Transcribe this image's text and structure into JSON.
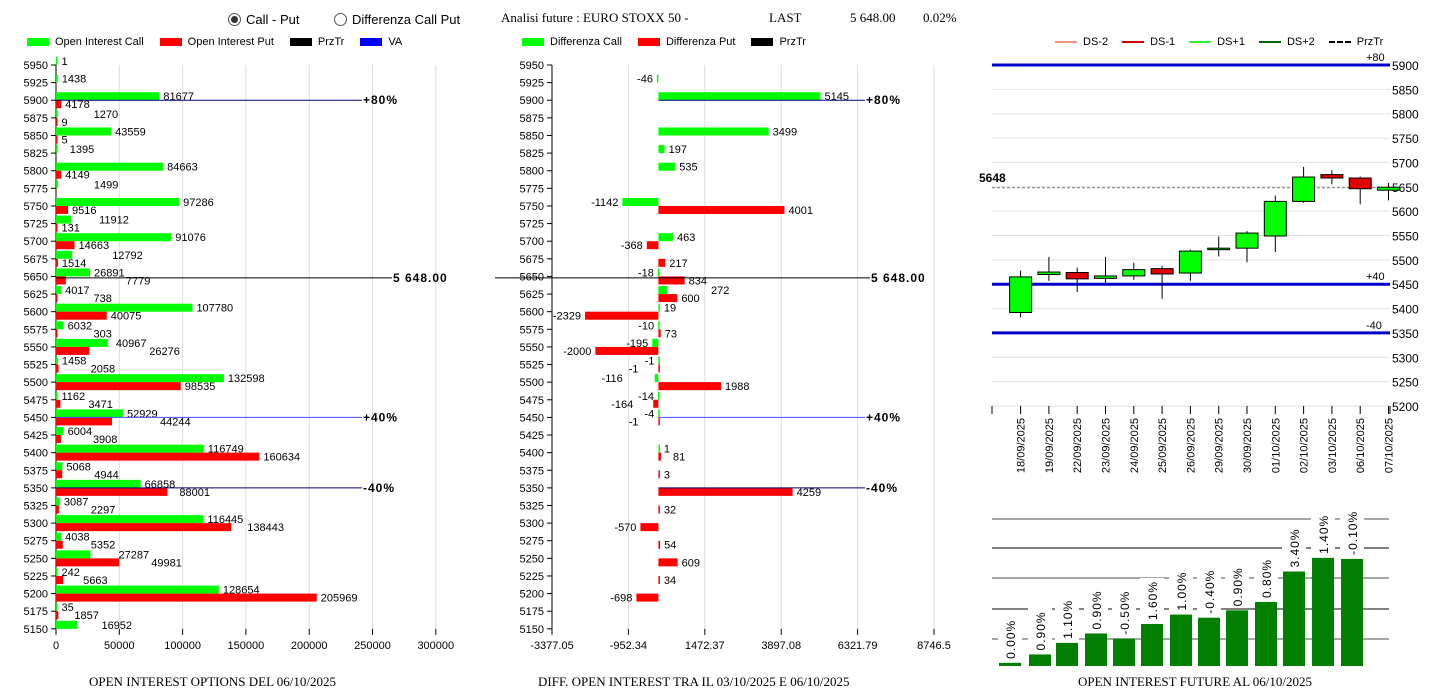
{
  "controls": {
    "radio_call_put": "Call - Put",
    "radio_diff": "Differenza Call Put",
    "selected": "Call - Put"
  },
  "header": {
    "title": "Analisi future : EURO STOXX 50 -",
    "last_label": "LAST",
    "last_value": "5 648.00",
    "change_pct": "0.02%"
  },
  "colors": {
    "call": "#00ff00",
    "put": "#ff0000",
    "przTr": "#000000",
    "va": "#0000ff",
    "candle_up": "#00ff00",
    "candle_down": "#e00000",
    "oi_bar": "#007f00"
  },
  "chart_data": [
    {
      "type": "bar",
      "name": "open-interest-options",
      "title": "OPEN INTEREST OPTIONS DEL 06/10/2025",
      "legend": [
        "Open Interest Call",
        "Open Interest Put",
        "PrzTr",
        "VA"
      ],
      "legend_placement": "top",
      "orientation": "horizontal",
      "categories": [
        5950,
        5925,
        5900,
        5875,
        5850,
        5825,
        5800,
        5775,
        5750,
        5725,
        5700,
        5675,
        5650,
        5625,
        5600,
        5575,
        5550,
        5525,
        5500,
        5475,
        5450,
        5425,
        5400,
        5375,
        5350,
        5325,
        5300,
        5275,
        5250,
        5225,
        5200,
        5175,
        5150
      ],
      "series": [
        {
          "name": "Open Interest Call",
          "values": [
            1,
            1438,
            81677,
            1270,
            43559,
            1395,
            84663,
            1499,
            97286,
            11912,
            91076,
            12792,
            26891,
            4017,
            107780,
            6032,
            40967,
            1458,
            132598,
            1162,
            52929,
            6004,
            116749,
            5068,
            66858,
            3087,
            116445,
            4038,
            27287,
            242,
            128654,
            35,
            16952
          ]
        },
        {
          "name": "Open Interest Put",
          "values": [
            null,
            null,
            4178,
            9,
            5,
            null,
            4149,
            null,
            9516,
            131,
            14663,
            1514,
            7779,
            738,
            40075,
            303,
            26276,
            2058,
            98535,
            3471,
            44244,
            3908,
            160634,
            4944,
            88001,
            2297,
            138443,
            5352,
            49981,
            5663,
            205969,
            1857,
            null
          ]
        }
      ],
      "xticks": [
        "0",
        "50000",
        "100000",
        "150000",
        "200000",
        "250000",
        "300000"
      ],
      "xlim": [
        0,
        330000
      ],
      "reference_lines": [
        {
          "strike": 5900,
          "label": "+80%",
          "kind": "VA"
        },
        {
          "strike": 5648,
          "label": "5 648.00",
          "kind": "PrzTr"
        },
        {
          "strike": 5450,
          "label": "+40%",
          "kind": "VA"
        },
        {
          "strike": 5350,
          "label": "-40%",
          "kind": "VA"
        }
      ],
      "grid": true
    },
    {
      "type": "bar",
      "name": "diff-open-interest",
      "title": "DIFF. OPEN INTEREST TRA IL 03/10/2025 E 06/10/2025",
      "legend": [
        "Differenza Call",
        "Differenza Put",
        "PrzTr"
      ],
      "legend_placement": "top",
      "orientation": "horizontal",
      "categories": [
        5950,
        5925,
        5900,
        5875,
        5850,
        5825,
        5800,
        5775,
        5750,
        5725,
        5700,
        5675,
        5650,
        5625,
        5600,
        5575,
        5550,
        5525,
        5500,
        5475,
        5450,
        5425,
        5400,
        5375,
        5350,
        5325,
        5300,
        5275,
        5250,
        5225,
        5200,
        5175,
        5150
      ],
      "series": [
        {
          "name": "Differenza Call",
          "values": [
            null,
            -46,
            5145,
            null,
            3499,
            197,
            535,
            null,
            -1142,
            null,
            463,
            null,
            -18,
            272,
            19,
            -10,
            -195,
            -1,
            -116,
            -14,
            -4,
            null,
            1,
            null,
            null,
            null,
            null,
            null,
            null,
            null,
            null,
            null,
            null
          ]
        },
        {
          "name": "Differenza Put",
          "values": [
            null,
            null,
            null,
            null,
            null,
            null,
            null,
            null,
            4001,
            null,
            -368,
            217,
            834,
            600,
            -2329,
            73,
            -2000,
            -1,
            1988,
            -164,
            -1,
            null,
            81,
            3,
            4259,
            32,
            -570,
            54,
            609,
            34,
            -698,
            null,
            null
          ]
        }
      ],
      "xticks": [
        "-3377.05",
        "-952.34",
        "1472.37",
        "3897.08",
        "6321.79",
        "8746.5"
      ],
      "xlim": [
        -3377.05,
        8746.5
      ],
      "reference_lines": [
        {
          "strike": 5900,
          "label": "+80%",
          "kind": "VA"
        },
        {
          "strike": 5648,
          "label": "5 648.00",
          "kind": "PrzTr"
        },
        {
          "strike": 5450,
          "label": "+40%",
          "kind": "VA"
        },
        {
          "strike": 5350,
          "label": "-40%",
          "kind": "VA"
        }
      ],
      "grid": true
    },
    {
      "type": "candlestick",
      "name": "future-price",
      "legend": [
        "DS-2",
        "DS-1",
        "DS+1",
        "DS+2",
        "PrzTr"
      ],
      "legend_colors": [
        "#e9967a",
        "#cc0000",
        "#33ee33",
        "#006400",
        "#000000"
      ],
      "legend_placement": "top",
      "dates": [
        "18/09/2025",
        "19/09/2025",
        "22/09/2025",
        "23/09/2025",
        "24/09/2025",
        "25/09/2025",
        "26/09/2025",
        "29/09/2025",
        "30/09/2025",
        "01/10/2025",
        "02/10/2025",
        "03/10/2025",
        "06/10/2025",
        "07/10/2025"
      ],
      "ohlc": [
        [
          5392,
          5478,
          5382,
          5465
        ],
        [
          5470,
          5506,
          5457,
          5475
        ],
        [
          5474,
          5484,
          5434,
          5461
        ],
        [
          5462,
          5506,
          5451,
          5467
        ],
        [
          5467,
          5494,
          5459,
          5480
        ],
        [
          5482,
          5488,
          5420,
          5471
        ],
        [
          5473,
          5521,
          5457,
          5518
        ],
        [
          5522,
          5548,
          5507,
          5524
        ],
        [
          5524,
          5559,
          5495,
          5555
        ],
        [
          5549,
          5632,
          5516,
          5620
        ],
        [
          5620,
          5691,
          5617,
          5670
        ],
        [
          5675,
          5684,
          5655,
          5668
        ],
        [
          5668,
          5671,
          5614,
          5646
        ],
        [
          5643,
          5658,
          5622,
          5649
        ]
      ],
      "yticks": [
        5200,
        5250,
        5300,
        5350,
        5400,
        5450,
        5500,
        5550,
        5600,
        5650,
        5700,
        5750,
        5800,
        5850,
        5900
      ],
      "ylim": [
        5200,
        5900
      ],
      "current_price": 5648,
      "current_label": "5648",
      "bands": [
        {
          "value": 5900,
          "label": "+80"
        },
        {
          "value": 5450,
          "label": "+40"
        },
        {
          "value": 5350,
          "label": "-40"
        }
      ],
      "grid": true
    },
    {
      "type": "bar",
      "name": "open-interest-future",
      "title": "OPEN INTEREST FUTURE AL 06/10/2025",
      "categories": [
        "18/09/2025",
        "19/09/2025",
        "22/09/2025",
        "23/09/2025",
        "24/09/2025",
        "25/09/2025",
        "26/09/2025",
        "29/09/2025",
        "30/09/2025",
        "01/10/2025",
        "02/10/2025",
        "03/10/2025",
        "06/10/2025"
      ],
      "relative_heights": [
        0.03,
        0.11,
        0.22,
        0.31,
        0.26,
        0.4,
        0.49,
        0.46,
        0.53,
        0.61,
        0.9,
        1.03,
        1.02
      ],
      "labels": [
        "0.00%",
        "0.90%",
        "1.10%",
        "0.90%",
        "-0.50%",
        "1.60%",
        "1.00%",
        "-0.40%",
        "0.90%",
        "0.80%",
        "3.40%",
        "1.40%",
        "-0.10%"
      ],
      "grid": true
    }
  ]
}
